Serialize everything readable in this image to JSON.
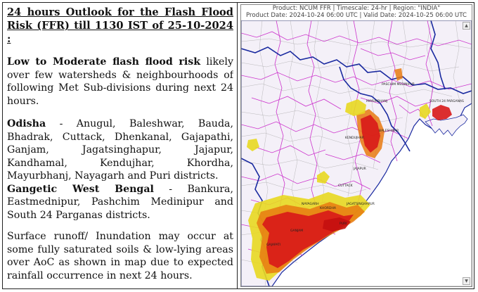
{
  "bulletin": {
    "headline": "24 hours Outlook for the Flash Flood Risk (FFR) till 1130 IST of 25-10-2024 :",
    "intro_bold": "Low to Moderate flash flood risk",
    "intro_rest": " likely over few watersheds & neighbourhoods of following Met Sub-divisions during next 24 hours.",
    "odisha_label": "Odisha",
    "odisha_districts": " - Anugul, Baleshwar, Bauda, Bhadrak, Cuttack, Dhenkanal, Gajapathi, Ganjam, Jagatsinghapur, Jajapur, Kandhamal, Kendujhar, Khordha, Mayurbhanj, Nayagarh and Puri districts.",
    "gwb_label": "Gangetic West Bengal",
    "gwb_districts": " - Bankura, Eastmednipur, Pashchim Medinipur and South 24 Parganas districts.",
    "runoff_note": "Surface runoff/ Inundation may occur at some fully saturated soils & low-lying areas over AoC as shown in map due to expected rainfall occurrence in next 24 hours."
  },
  "map": {
    "header_line1": "Product: NCUM FFR  |  Timescale: 24-hr  |  Region: \"INDIA\"",
    "header_line2": "Product Date: 2024-10-24 06:00 UTC  |  Valid Date: 2024-10-25 06:00 UTC",
    "scroll_up_glyph": "▲",
    "scroll_down_glyph": "▼",
    "place_labels": [
      "MAYURBHANJ",
      "BALESHWAR",
      "SOUTH 24 PARGANAS",
      "KENDUJHAR",
      "JAJAPUR",
      "CUTTACK",
      "KHORDHA",
      "PURI",
      "GANJAM",
      "GAJAPATI",
      "NAYAGARH",
      "JAGATSINGHAPUR",
      "PASCHIM MEDINIPUR"
    ],
    "colors": {
      "land": "#f5f2f8",
      "sea": "#ffffff",
      "state_border": "#1a2aa0",
      "district_border": "#cc33cc",
      "watershed": "#9a9a9a",
      "high_risk": "#d81818",
      "moderate_risk": "#e87a10",
      "low_risk": "#e8d820"
    }
  }
}
